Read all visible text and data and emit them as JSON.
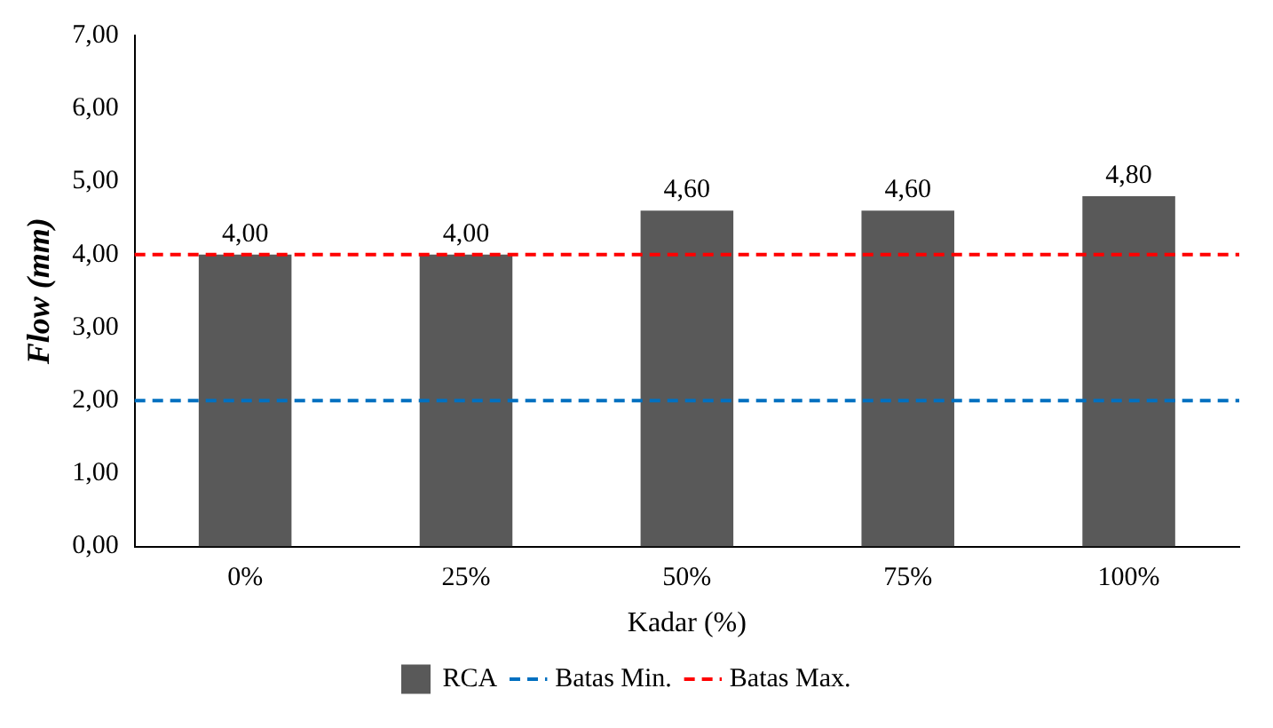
{
  "chart_data": {
    "type": "bar",
    "xlabel": "Kadar (%)",
    "ylabel": "Flow (mm)",
    "categories": [
      "0%",
      "25%",
      "50%",
      "75%",
      "100%"
    ],
    "series": [
      {
        "name": "RCA",
        "color": "#595959",
        "values": [
          4.0,
          4.0,
          4.6,
          4.6,
          4.8
        ],
        "value_labels": [
          "4,00",
          "4,00",
          "4,60",
          "4,60",
          "4,80"
        ]
      }
    ],
    "ylim": [
      0,
      7
    ],
    "yticks": [
      {
        "value": 0,
        "label": "0,00"
      },
      {
        "value": 1,
        "label": "1,00"
      },
      {
        "value": 2,
        "label": "2,00"
      },
      {
        "value": 3,
        "label": "3,00"
      },
      {
        "value": 4,
        "label": "4,00"
      },
      {
        "value": 5,
        "label": "5,00"
      },
      {
        "value": 6,
        "label": "6,00"
      },
      {
        "value": 7,
        "label": "7,00"
      }
    ],
    "ref_lines": [
      {
        "axis": "y",
        "value": 2,
        "label": "Batas Min.",
        "color": "#0070c0",
        "line_style": "dashed"
      },
      {
        "axis": "y",
        "value": 4,
        "label": "Batas Max.",
        "color": "#ff0000",
        "line_style": "dashed"
      }
    ],
    "grid": false,
    "legend": "bottom"
  }
}
